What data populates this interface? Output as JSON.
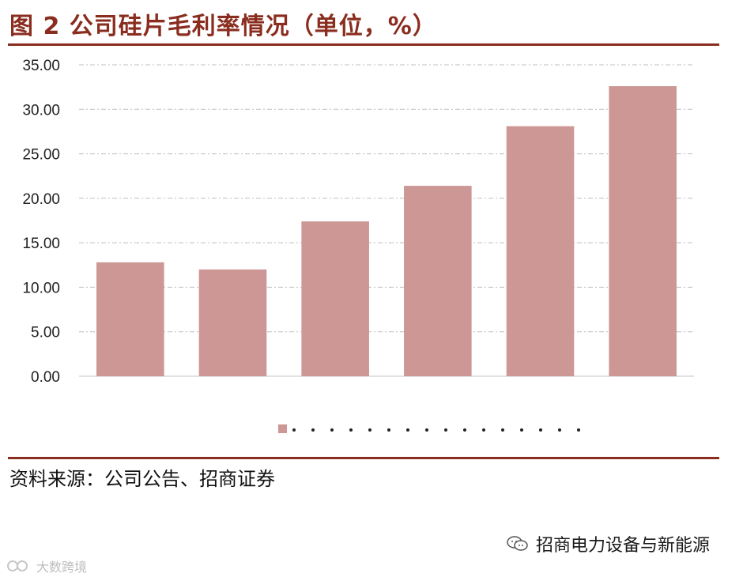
{
  "header": {
    "title": "图 2 公司硅片毛利率情况（单位，%）"
  },
  "chart_data": {
    "type": "bar",
    "categories": [
      "",
      "",
      "",
      "",
      "",
      ""
    ],
    "values": [
      12.8,
      12.0,
      17.4,
      21.4,
      28.1,
      32.6
    ],
    "ylim": [
      0,
      35
    ],
    "yticks": [
      "0.00",
      "5.00",
      "10.00",
      "15.00",
      "20.00",
      "25.00",
      "30.00",
      "35.00"
    ],
    "grid": true,
    "bar_color": "#cc9795",
    "legend_placement": "bottom",
    "title": "",
    "xlabel": "",
    "ylabel": ""
  },
  "footer": {
    "source": "资料来源：公司公告、招商证券"
  },
  "watermarks": {
    "right_text": "招商电力设备与新能源",
    "left_text": "大数跨境",
    "right_icon": "wechat-icon",
    "left_icon": "brand-logo-icon"
  },
  "colors": {
    "accent": "#8a2d1f",
    "bar": "#cc9795",
    "grid": "#bfbfbf"
  }
}
